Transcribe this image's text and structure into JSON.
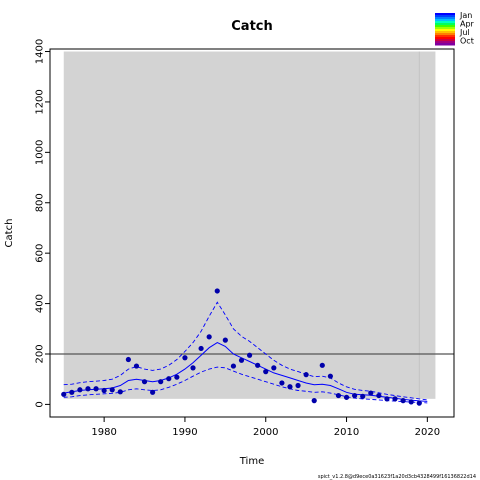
{
  "chart_data": {
    "type": "scatter",
    "title": "Catch",
    "xlabel": "Time",
    "ylabel": "Catch",
    "xlim": [
      1973.3,
      2023.3
    ],
    "ylim": [
      -50,
      1410
    ],
    "xticks": [
      1980,
      1990,
      2000,
      2010,
      2020
    ],
    "yticks": [
      0,
      200,
      400,
      600,
      800,
      1000,
      1200,
      1400
    ],
    "grid": false,
    "shaded_region": {
      "x": [
        1975,
        2021
      ],
      "y": [
        22,
        1400
      ],
      "color": "#d3d3d3"
    },
    "vertical_line": {
      "x": 2019,
      "color": "#bfbfbf"
    },
    "reference_line": {
      "y": 200,
      "color": "#555555"
    },
    "observed": {
      "color": "#0000aa",
      "x": [
        1975,
        1976,
        1977,
        1978,
        1979,
        1980,
        1981,
        1982,
        1983,
        1984,
        1985,
        1986,
        1987,
        1988,
        1989,
        1990,
        1991,
        1992,
        1993,
        1994,
        1995,
        1996,
        1997,
        1998,
        1999,
        2000,
        2001,
        2002,
        2003,
        2004,
        2005,
        2006,
        2007,
        2008,
        2009,
        2010,
        2011,
        2012,
        2013,
        2014,
        2015,
        2016,
        2017,
        2018,
        2019
      ],
      "y": [
        40,
        48,
        58,
        62,
        62,
        55,
        58,
        50,
        178,
        152,
        90,
        48,
        90,
        102,
        108,
        185,
        145,
        222,
        268,
        450,
        255,
        152,
        175,
        195,
        155,
        130,
        145,
        85,
        70,
        75,
        118,
        15,
        155,
        112,
        35,
        28,
        35,
        32,
        45,
        35,
        22,
        22,
        15,
        10,
        5
      ]
    },
    "fit": {
      "color": "#0000ff",
      "x": [
        1975,
        1976,
        1977,
        1978,
        1979,
        1980,
        1981,
        1982,
        1983,
        1984,
        1985,
        1986,
        1987,
        1988,
        1989,
        1990,
        1991,
        1992,
        1993,
        1994,
        1995,
        1996,
        1997,
        1998,
        1999,
        2000,
        2001,
        2002,
        2003,
        2004,
        2005,
        2006,
        2007,
        2008,
        2009,
        2010,
        2011,
        2012,
        2013,
        2014,
        2015,
        2016,
        2017,
        2018,
        2019,
        2020
      ],
      "y": [
        45,
        50,
        55,
        58,
        60,
        62,
        65,
        75,
        95,
        100,
        95,
        90,
        95,
        105,
        120,
        140,
        165,
        195,
        225,
        245,
        230,
        200,
        185,
        170,
        155,
        140,
        125,
        115,
        105,
        95,
        85,
        78,
        80,
        75,
        62,
        48,
        40,
        38,
        36,
        32,
        28,
        24,
        20,
        17,
        14,
        12
      ],
      "upper": [
        78,
        80,
        86,
        90,
        92,
        95,
        100,
        115,
        140,
        150,
        140,
        135,
        140,
        155,
        178,
        210,
        245,
        290,
        350,
        405,
        355,
        300,
        270,
        250,
        225,
        200,
        175,
        155,
        140,
        130,
        120,
        110,
        112,
        105,
        85,
        70,
        60,
        55,
        52,
        46,
        40,
        35,
        30,
        26,
        22,
        18
      ],
      "lower": [
        28,
        30,
        35,
        38,
        40,
        42,
        44,
        48,
        58,
        62,
        58,
        55,
        58,
        68,
        80,
        95,
        112,
        128,
        140,
        148,
        145,
        132,
        120,
        110,
        100,
        90,
        80,
        70,
        62,
        55,
        52,
        48,
        50,
        45,
        38,
        30,
        25,
        22,
        20,
        18,
        15,
        13,
        11,
        9,
        8,
        6
      ]
    },
    "legend": {
      "labels": [
        "Jan",
        "Apr",
        "Jul",
        "Oct"
      ],
      "placement": "top-right"
    }
  },
  "footer": "spict_v1.2.8@d9ece0a31623f1a20d3cb4328499f16136822d14"
}
